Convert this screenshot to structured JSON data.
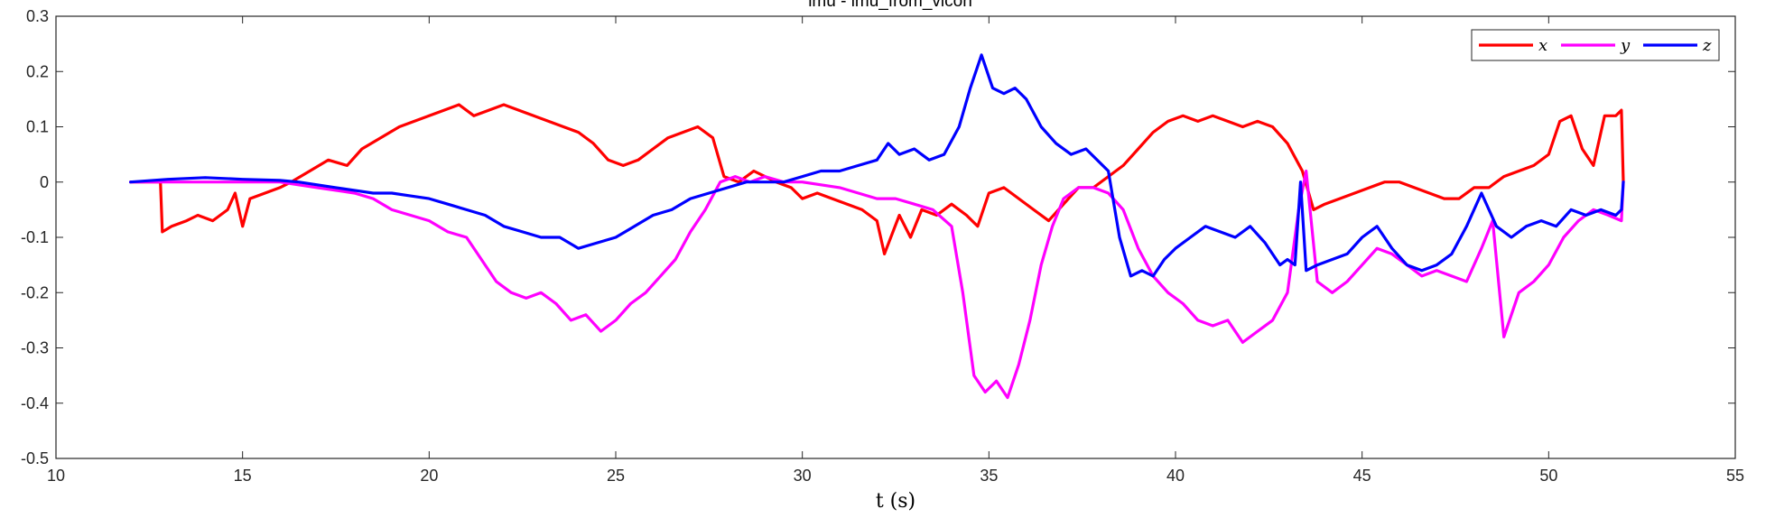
{
  "chart_data": {
    "type": "line",
    "title": "imu - imu_from_vicon",
    "xlabel": "t (s)",
    "ylabel": "",
    "xlim": [
      10,
      55
    ],
    "ylim": [
      -0.5,
      0.3
    ],
    "xticks": [
      10,
      15,
      20,
      25,
      30,
      35,
      40,
      45,
      50,
      55
    ],
    "yticks": [
      -0.5,
      -0.4,
      -0.3,
      -0.2,
      -0.1,
      0,
      0.1,
      0.2,
      0.3
    ],
    "xtick_labels": [
      "10",
      "15",
      "20",
      "25",
      "30",
      "35",
      "40",
      "45",
      "50",
      "55"
    ],
    "ytick_labels": [
      "-0.5",
      "-0.4",
      "-0.3",
      "-0.2",
      "-0.1",
      "0",
      "0.1",
      "0.2",
      "0.3"
    ],
    "grid": false,
    "legend_position": "top-right",
    "series": [
      {
        "name": "x",
        "color": "#ff0000",
        "x": [
          12.0,
          12.8,
          12.85,
          13.1,
          13.5,
          13.8,
          14.2,
          14.6,
          14.8,
          15.0,
          15.2,
          15.6,
          16.0,
          16.3,
          16.8,
          17.3,
          17.8,
          18.2,
          18.7,
          19.2,
          19.6,
          20.0,
          20.4,
          20.8,
          21.2,
          21.6,
          22.0,
          22.4,
          22.8,
          23.2,
          23.6,
          24.0,
          24.4,
          24.8,
          25.2,
          25.6,
          26.0,
          26.4,
          26.8,
          27.2,
          27.6,
          27.9,
          28.3,
          28.7,
          29.0,
          29.3,
          29.7,
          30.0,
          30.4,
          30.8,
          31.2,
          31.6,
          32.0,
          32.2,
          32.6,
          32.9,
          33.2,
          33.6,
          34.0,
          34.4,
          34.7,
          35.0,
          35.4,
          35.8,
          36.2,
          36.6,
          37.0,
          37.4,
          37.8,
          38.2,
          38.6,
          39.0,
          39.4,
          39.8,
          40.2,
          40.6,
          41.0,
          41.4,
          41.8,
          42.2,
          42.6,
          43.0,
          43.4,
          43.7,
          44.0,
          44.4,
          44.8,
          45.2,
          45.6,
          46.0,
          46.4,
          46.8,
          47.2,
          47.6,
          48.0,
          48.4,
          48.8,
          49.2,
          49.6,
          50.0,
          50.3,
          50.6,
          50.9,
          51.2,
          51.5,
          51.8,
          51.95,
          52.0
        ],
        "y": [
          0.0,
          0.0,
          -0.09,
          -0.08,
          -0.07,
          -0.06,
          -0.07,
          -0.05,
          -0.02,
          -0.08,
          -0.03,
          -0.02,
          -0.01,
          0.0,
          0.02,
          0.04,
          0.03,
          0.06,
          0.08,
          0.1,
          0.11,
          0.12,
          0.13,
          0.14,
          0.12,
          0.13,
          0.14,
          0.13,
          0.12,
          0.11,
          0.1,
          0.09,
          0.07,
          0.04,
          0.03,
          0.04,
          0.06,
          0.08,
          0.09,
          0.1,
          0.08,
          0.01,
          0.0,
          0.02,
          0.01,
          0.0,
          -0.01,
          -0.03,
          -0.02,
          -0.03,
          -0.04,
          -0.05,
          -0.07,
          -0.13,
          -0.06,
          -0.1,
          -0.05,
          -0.06,
          -0.04,
          -0.06,
          -0.08,
          -0.02,
          -0.01,
          -0.03,
          -0.05,
          -0.07,
          -0.04,
          -0.01,
          -0.01,
          0.01,
          0.03,
          0.06,
          0.09,
          0.11,
          0.12,
          0.11,
          0.12,
          0.11,
          0.1,
          0.11,
          0.1,
          0.07,
          0.02,
          -0.05,
          -0.04,
          -0.03,
          -0.02,
          -0.01,
          0.0,
          0.0,
          -0.01,
          -0.02,
          -0.03,
          -0.03,
          -0.01,
          -0.01,
          0.01,
          0.02,
          0.03,
          0.05,
          0.11,
          0.12,
          0.06,
          0.03,
          0.12,
          0.12,
          0.13,
          0.0
        ]
      },
      {
        "name": "y",
        "color": "#ff00ff",
        "x": [
          12.0,
          13.0,
          14.0,
          15.0,
          16.0,
          16.5,
          17.0,
          17.5,
          18.0,
          18.5,
          19.0,
          19.5,
          20.0,
          20.5,
          21.0,
          21.4,
          21.8,
          22.2,
          22.6,
          23.0,
          23.4,
          23.8,
          24.2,
          24.6,
          25.0,
          25.4,
          25.8,
          26.2,
          26.6,
          27.0,
          27.4,
          27.8,
          28.2,
          28.6,
          29.0,
          29.5,
          30.0,
          30.5,
          31.0,
          31.5,
          32.0,
          32.5,
          33.0,
          33.5,
          34.0,
          34.3,
          34.6,
          34.9,
          35.2,
          35.5,
          35.8,
          36.1,
          36.4,
          36.7,
          37.0,
          37.4,
          37.8,
          38.2,
          38.6,
          39.0,
          39.4,
          39.8,
          40.2,
          40.6,
          41.0,
          41.4,
          41.8,
          42.2,
          42.6,
          43.0,
          43.3,
          43.5,
          43.8,
          44.2,
          44.6,
          45.0,
          45.4,
          45.8,
          46.2,
          46.6,
          47.0,
          47.4,
          47.8,
          48.2,
          48.5,
          48.8,
          49.2,
          49.6,
          50.0,
          50.4,
          50.8,
          51.2,
          51.6,
          51.95,
          52.0
        ],
        "y": [
          0.0,
          0.0,
          0.0,
          0.0,
          0.0,
          -0.005,
          -0.01,
          -0.015,
          -0.02,
          -0.03,
          -0.05,
          -0.06,
          -0.07,
          -0.09,
          -0.1,
          -0.14,
          -0.18,
          -0.2,
          -0.21,
          -0.2,
          -0.22,
          -0.25,
          -0.24,
          -0.27,
          -0.25,
          -0.22,
          -0.2,
          -0.17,
          -0.14,
          -0.09,
          -0.05,
          0.0,
          0.01,
          0.0,
          0.01,
          0.0,
          0.0,
          -0.005,
          -0.01,
          -0.02,
          -0.03,
          -0.03,
          -0.04,
          -0.05,
          -0.08,
          -0.2,
          -0.35,
          -0.38,
          -0.36,
          -0.39,
          -0.33,
          -0.25,
          -0.15,
          -0.08,
          -0.03,
          -0.01,
          -0.01,
          -0.02,
          -0.05,
          -0.12,
          -0.17,
          -0.2,
          -0.22,
          -0.25,
          -0.26,
          -0.25,
          -0.29,
          -0.27,
          -0.25,
          -0.2,
          -0.05,
          0.02,
          -0.18,
          -0.2,
          -0.18,
          -0.15,
          -0.12,
          -0.13,
          -0.15,
          -0.17,
          -0.16,
          -0.17,
          -0.18,
          -0.12,
          -0.07,
          -0.28,
          -0.2,
          -0.18,
          -0.15,
          -0.1,
          -0.07,
          -0.05,
          -0.06,
          -0.07,
          0.0
        ]
      },
      {
        "name": "z",
        "color": "#0000ff",
        "x": [
          12.0,
          13.0,
          14.0,
          15.0,
          16.0,
          16.5,
          17.0,
          17.5,
          18.0,
          18.5,
          19.0,
          19.5,
          20.0,
          20.5,
          21.0,
          21.5,
          22.0,
          22.5,
          23.0,
          23.5,
          24.0,
          24.5,
          25.0,
          25.5,
          26.0,
          26.5,
          27.0,
          27.5,
          28.0,
          28.5,
          29.0,
          29.5,
          30.0,
          30.5,
          31.0,
          31.5,
          32.0,
          32.3,
          32.6,
          33.0,
          33.4,
          33.8,
          34.2,
          34.5,
          34.8,
          35.1,
          35.4,
          35.7,
          36.0,
          36.4,
          36.8,
          37.2,
          37.6,
          37.9,
          38.2,
          38.5,
          38.8,
          39.1,
          39.4,
          39.7,
          40.0,
          40.4,
          40.8,
          41.2,
          41.6,
          42.0,
          42.4,
          42.8,
          43.0,
          43.2,
          43.35,
          43.5,
          43.8,
          44.2,
          44.6,
          45.0,
          45.4,
          45.8,
          46.2,
          46.6,
          47.0,
          47.4,
          47.8,
          48.2,
          48.6,
          49.0,
          49.4,
          49.8,
          50.2,
          50.6,
          51.0,
          51.4,
          51.8,
          51.95,
          52.0
        ],
        "y": [
          0.0,
          0.005,
          0.008,
          0.005,
          0.003,
          0.0,
          -0.005,
          -0.01,
          -0.015,
          -0.02,
          -0.02,
          -0.025,
          -0.03,
          -0.04,
          -0.05,
          -0.06,
          -0.08,
          -0.09,
          -0.1,
          -0.1,
          -0.12,
          -0.11,
          -0.1,
          -0.08,
          -0.06,
          -0.05,
          -0.03,
          -0.02,
          -0.01,
          0.0,
          0.0,
          0.0,
          0.01,
          0.02,
          0.02,
          0.03,
          0.04,
          0.07,
          0.05,
          0.06,
          0.04,
          0.05,
          0.1,
          0.17,
          0.23,
          0.17,
          0.16,
          0.17,
          0.15,
          0.1,
          0.07,
          0.05,
          0.06,
          0.04,
          0.02,
          -0.1,
          -0.17,
          -0.16,
          -0.17,
          -0.14,
          -0.12,
          -0.1,
          -0.08,
          -0.09,
          -0.1,
          -0.08,
          -0.11,
          -0.15,
          -0.14,
          -0.15,
          0.0,
          -0.16,
          -0.15,
          -0.14,
          -0.13,
          -0.1,
          -0.08,
          -0.12,
          -0.15,
          -0.16,
          -0.15,
          -0.13,
          -0.08,
          -0.02,
          -0.08,
          -0.1,
          -0.08,
          -0.07,
          -0.08,
          -0.05,
          -0.06,
          -0.05,
          -0.06,
          -0.05,
          0.0
        ]
      }
    ]
  }
}
